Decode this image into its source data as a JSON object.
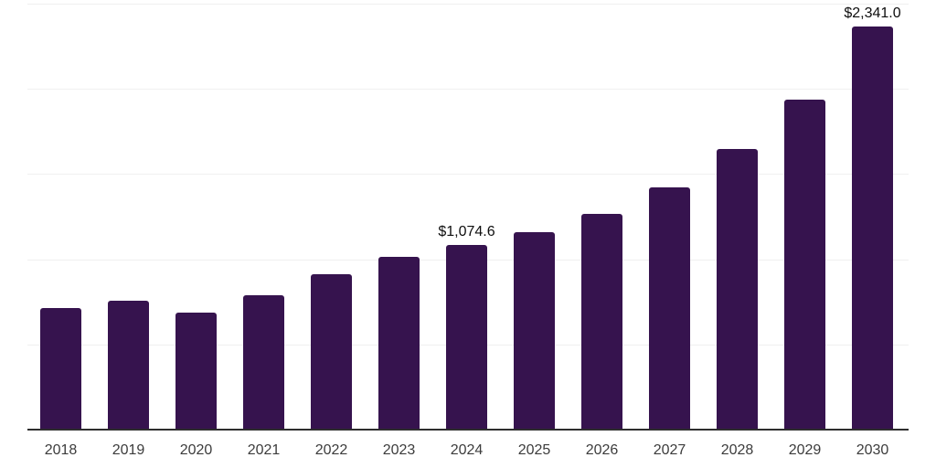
{
  "chart_data": {
    "type": "bar",
    "title": "",
    "xlabel": "",
    "ylabel": "",
    "categories": [
      "2018",
      "2019",
      "2020",
      "2021",
      "2022",
      "2023",
      "2024",
      "2025",
      "2026",
      "2027",
      "2028",
      "2029",
      "2030"
    ],
    "values": [
      706.0,
      748.3,
      682.1,
      780.3,
      905.0,
      1005.9,
      1074.6,
      1146.5,
      1252.7,
      1406.6,
      1628.0,
      1916.2,
      2341.0
    ],
    "ylim": [
      0,
      2500
    ],
    "grid": "horizontal-faint",
    "legend": "none",
    "data_labels": [
      {
        "category": "2024",
        "text": "$1,074.6"
      },
      {
        "category": "2030",
        "text": "$2,341.0"
      }
    ],
    "colors": {
      "bar": "#36134e",
      "axis_line": "#2e2e2e",
      "gridline": "#f0f0f0",
      "tick_label": "#3c3c3c",
      "data_label": "#0e0e0e",
      "background": "#ffffff"
    }
  }
}
